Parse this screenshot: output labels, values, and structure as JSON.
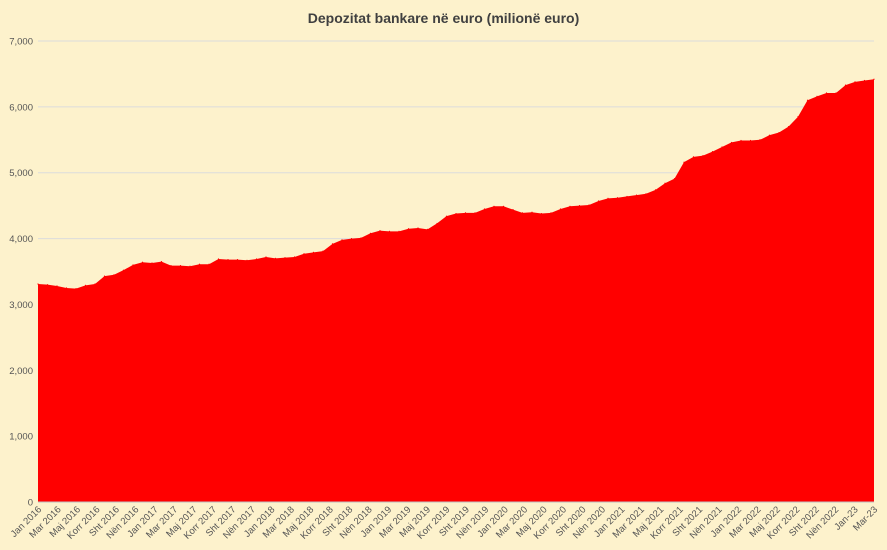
{
  "chart_data": {
    "type": "area",
    "title": "Depozitat bankare në euro (milionë euro)",
    "xlabel": "",
    "ylabel": "",
    "ylim": [
      0,
      7000
    ],
    "yticks": [
      0,
      1000,
      2000,
      3000,
      4000,
      5000,
      6000,
      7000
    ],
    "ytick_labels": [
      "0",
      "1,000",
      "2,000",
      "3,000",
      "4,000",
      "5,000",
      "6,000",
      "7,000"
    ],
    "grid": true,
    "color": "#ff0000",
    "x_tick_labels": [
      "Jan 2016",
      "Mar 2016",
      "Maj 2016",
      "Korr 2016",
      "Sht 2016",
      "Nën 2016",
      "Jan 2017",
      "Mar 2017",
      "Maj 2017",
      "Korr 2017",
      "Sht 2017",
      "Nën 2017",
      "Jan 2018",
      "Mar 2018",
      "Maj 2018",
      "Korr 2018",
      "Sht 2018",
      "Nën 2018",
      "Jan 2019",
      "Mar 2019",
      "Maj 2019",
      "Korr 2019",
      "Sht 2019",
      "Nën 2019",
      "Jan 2020",
      "Mar 2020",
      "Maj 2020",
      "Korr 2020",
      "Sht 2020",
      "Nën 2020",
      "Jan 2021",
      "Mar 2021",
      "Maj 2021",
      "Korr 2021",
      "Sht 2021",
      "Nën 2021",
      "Jan 2022",
      "Mar 2022",
      "Maj 2022",
      "Korr 2022",
      "Sht 2022",
      "Nën 2022",
      "Jan-23",
      "Mar-23"
    ],
    "values": [
      3310,
      3300,
      3280,
      3250,
      3240,
      3290,
      3310,
      3430,
      3450,
      3520,
      3600,
      3640,
      3630,
      3650,
      3590,
      3590,
      3580,
      3610,
      3610,
      3690,
      3680,
      3680,
      3670,
      3690,
      3720,
      3700,
      3710,
      3720,
      3770,
      3790,
      3810,
      3920,
      3980,
      4000,
      4010,
      4080,
      4120,
      4110,
      4110,
      4150,
      4160,
      4140,
      4230,
      4340,
      4380,
      4390,
      4390,
      4450,
      4490,
      4490,
      4440,
      4390,
      4400,
      4380,
      4390,
      4450,
      4490,
      4500,
      4510,
      4570,
      4610,
      4620,
      4640,
      4660,
      4680,
      4740,
      4840,
      4910,
      5160,
      5240,
      5260,
      5320,
      5390,
      5460,
      5490,
      5490,
      5500,
      5570,
      5610,
      5700,
      5850,
      6100,
      6160,
      6210,
      6210,
      6330,
      6380,
      6400,
      6420
    ]
  }
}
